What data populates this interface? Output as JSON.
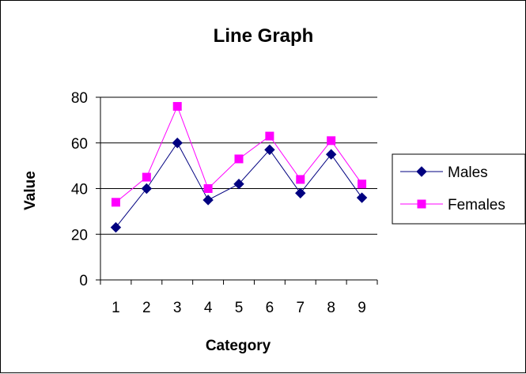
{
  "chart_data": {
    "type": "line",
    "title": "Line Graph",
    "xlabel": "Category",
    "ylabel": "Value",
    "categories": [
      "1",
      "2",
      "3",
      "4",
      "5",
      "6",
      "7",
      "8",
      "9"
    ],
    "ylim": [
      0,
      80
    ],
    "yticks": [
      "0",
      "20",
      "40",
      "60",
      "80"
    ],
    "grid": true,
    "legend_position": "right",
    "series": [
      {
        "name": "Males",
        "values": [
          23,
          40,
          60,
          35,
          42,
          57,
          38,
          55,
          36
        ],
        "color": "#000080",
        "marker": "diamond"
      },
      {
        "name": "Females",
        "values": [
          34,
          45,
          76,
          40,
          53,
          63,
          44,
          61,
          42
        ],
        "color": "#ff00ff",
        "marker": "square"
      }
    ]
  }
}
